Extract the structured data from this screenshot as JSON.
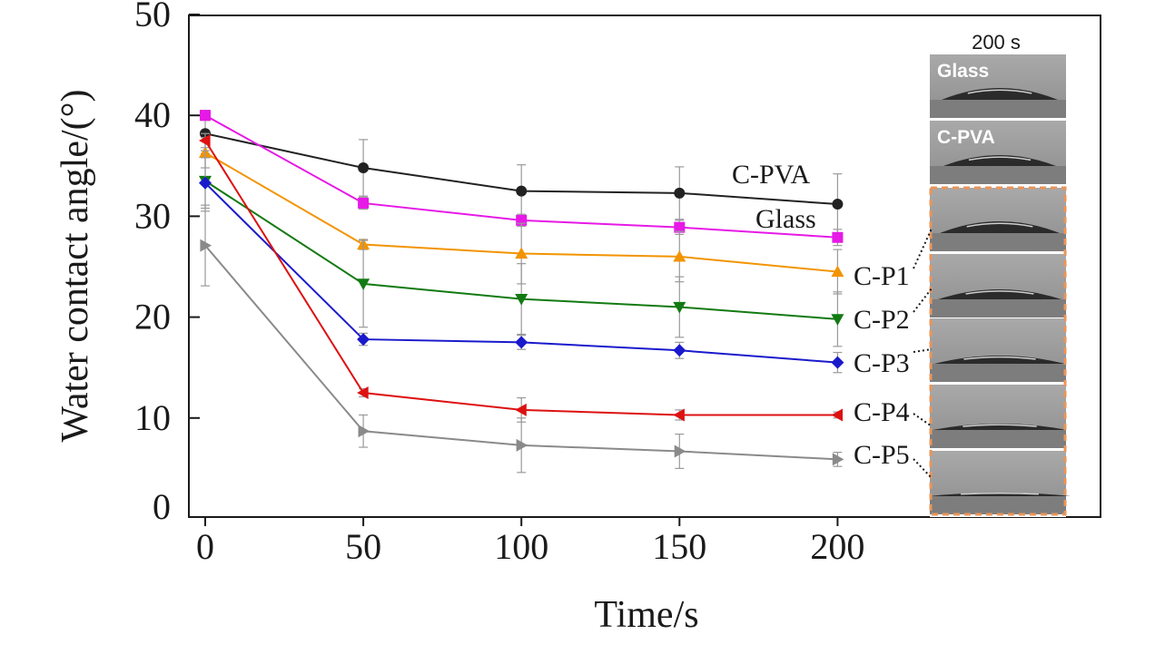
{
  "chart_data": {
    "type": "line",
    "xlabel": "Time/s",
    "ylabel": "Water contact angle/(°)",
    "x": [
      0,
      50,
      100,
      150,
      200
    ],
    "xlim": [
      -5,
      230
    ],
    "ylim": [
      0,
      50
    ],
    "xticks": [
      0,
      50,
      100,
      150,
      200
    ],
    "yticks": [
      0,
      10,
      20,
      30,
      40,
      50
    ],
    "grid": false,
    "legend": "none (series labeled directly at line ends)",
    "series": [
      {
        "name": "C-PVA",
        "marker": "circle",
        "color": "#222222",
        "values": [
          38.2,
          34.8,
          32.5,
          32.3,
          31.2
        ],
        "errors": [
          2.0,
          2.8,
          2.6,
          2.6,
          3.0
        ]
      },
      {
        "name": "Glass",
        "marker": "square",
        "color": "#e619e6",
        "values": [
          40.0,
          31.3,
          29.6,
          28.9,
          27.9
        ],
        "errors": [
          0.5,
          0.6,
          0.6,
          0.7,
          0.8
        ]
      },
      {
        "name": "C-P1",
        "marker": "triangle-up",
        "color": "#f29400",
        "values": [
          36.3,
          27.2,
          26.3,
          26.0,
          24.5
        ],
        "errors": [
          1.5,
          0.5,
          3.0,
          2.5,
          2.2
        ]
      },
      {
        "name": "C-P2",
        "marker": "triangle-down",
        "color": "#127a12",
        "values": [
          33.5,
          23.3,
          21.8,
          21.0,
          19.8
        ],
        "errors": [
          3.0,
          4.3,
          3.5,
          3.0,
          2.7
        ]
      },
      {
        "name": "C-P3",
        "marker": "diamond",
        "color": "#1a1acc",
        "values": [
          33.3,
          17.8,
          17.5,
          16.7,
          15.5
        ],
        "errors": [
          2.5,
          0.6,
          0.7,
          0.8,
          1.0
        ]
      },
      {
        "name": "C-P4",
        "marker": "triangle-left",
        "color": "#dd1111",
        "values": [
          37.5,
          12.5,
          10.8,
          10.3,
          10.3
        ],
        "errors": [
          0.7,
          0.4,
          1.2,
          0.5,
          0.3
        ]
      },
      {
        "name": "C-P5",
        "marker": "triangle-right",
        "color": "#8a8a8a",
        "values": [
          27.1,
          8.7,
          7.3,
          6.7,
          5.9
        ],
        "errors": [
          4.0,
          1.6,
          2.7,
          1.7,
          0.7
        ]
      }
    ]
  },
  "inset": {
    "title": "200 s",
    "photos": [
      {
        "label": "Glass"
      },
      {
        "label": "C-PVA"
      },
      {
        "label": ""
      },
      {
        "label": ""
      },
      {
        "label": ""
      },
      {
        "label": ""
      },
      {
        "label": ""
      }
    ],
    "highlight_color": "#e8955a"
  }
}
